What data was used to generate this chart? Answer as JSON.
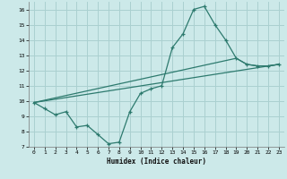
{
  "xlabel": "Humidex (Indice chaleur)",
  "bg_color": "#cce9e9",
  "grid_color": "#aad0d0",
  "line_color": "#2d7a6e",
  "xlim": [
    -0.5,
    23.5
  ],
  "ylim": [
    7,
    16.5
  ],
  "xticks": [
    0,
    1,
    2,
    3,
    4,
    5,
    6,
    7,
    8,
    9,
    10,
    11,
    12,
    13,
    14,
    15,
    16,
    17,
    18,
    19,
    20,
    21,
    22,
    23
  ],
  "yticks": [
    7,
    8,
    9,
    10,
    11,
    12,
    13,
    14,
    15,
    16
  ],
  "line1_x": [
    0,
    1,
    2,
    3,
    4,
    5,
    6,
    7,
    8,
    9,
    10,
    11,
    12,
    13,
    14,
    15,
    16,
    17,
    18,
    19,
    20,
    21,
    22,
    23
  ],
  "line1_y": [
    9.9,
    9.5,
    9.1,
    9.3,
    8.3,
    8.4,
    7.8,
    7.2,
    7.3,
    9.3,
    10.5,
    10.8,
    11.0,
    13.5,
    14.4,
    16.0,
    16.2,
    15.0,
    14.0,
    12.8,
    12.4,
    12.3,
    12.3,
    12.4
  ],
  "line2_x": [
    0,
    19,
    20,
    21,
    22,
    23
  ],
  "line2_y": [
    9.9,
    12.8,
    12.4,
    12.3,
    12.3,
    12.4
  ],
  "line3_x": [
    0,
    23
  ],
  "line3_y": [
    9.9,
    12.4
  ]
}
